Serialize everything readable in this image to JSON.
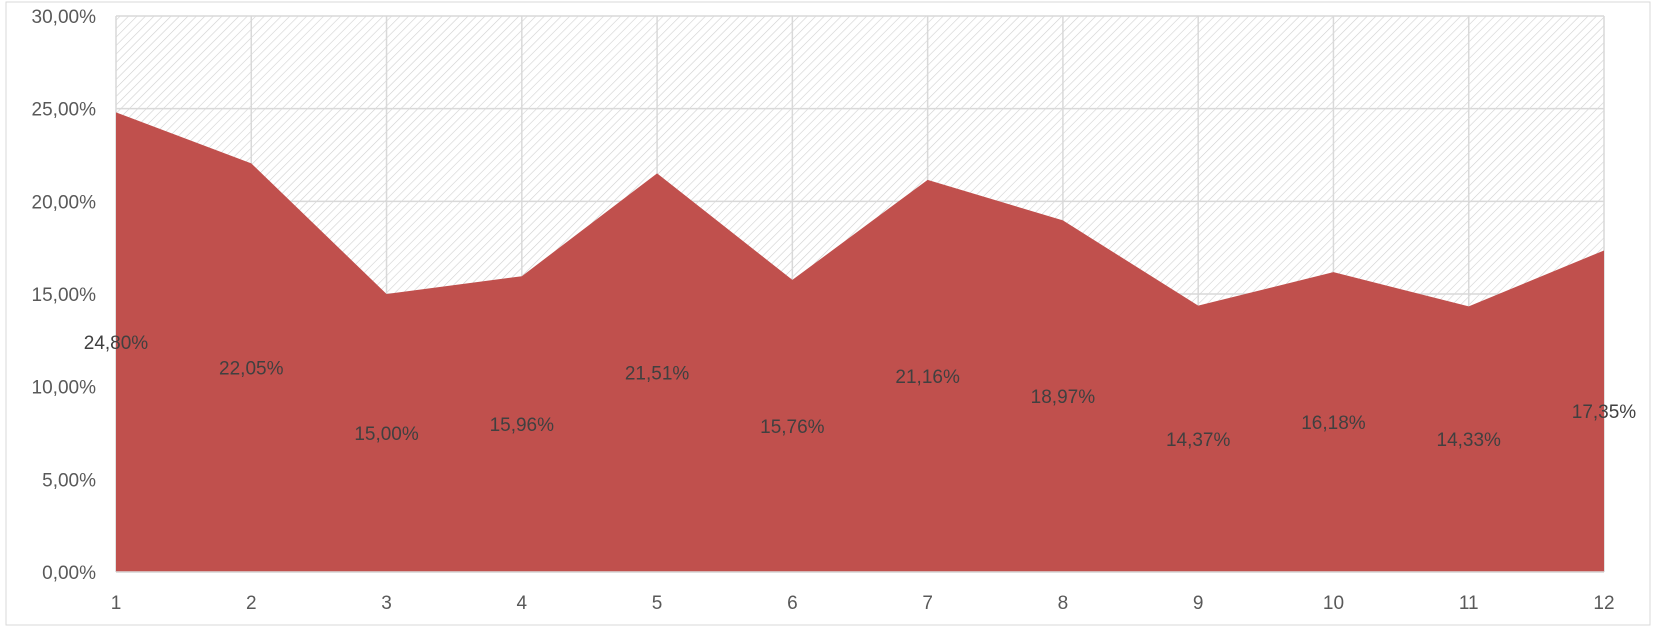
{
  "chart_data": {
    "type": "area",
    "title": "",
    "xlabel": "",
    "ylabel": "",
    "categories": [
      "1",
      "2",
      "3",
      "4",
      "5",
      "6",
      "7",
      "8",
      "9",
      "10",
      "11",
      "12"
    ],
    "series": [
      {
        "values": [
          24.8,
          22.05,
          15.0,
          15.96,
          21.51,
          15.76,
          21.16,
          18.97,
          14.37,
          16.18,
          14.33,
          17.35
        ],
        "data_labels": [
          "24,80%",
          "22,05%",
          "15,00%",
          "15,96%",
          "21,51%",
          "15,76%",
          "21,16%",
          "18,97%",
          "14,37%",
          "16,18%",
          "14,33%",
          "17,35%"
        ],
        "color": "#c0504d"
      }
    ],
    "ylim": [
      0,
      30
    ],
    "yticks": [
      0,
      5,
      10,
      15,
      20,
      25,
      30
    ],
    "ytick_labels": [
      "0,00%",
      "5,00%",
      "10,00%",
      "15,00%",
      "20,00%",
      "25,00%",
      "30,00%"
    ],
    "grid": true,
    "legend": "none",
    "background_fill": "diagonal-hatch",
    "colors": {
      "area": "#c0504d",
      "grid": "#d9d9d9",
      "hatch": "#d0d0d0",
      "text": "#595959"
    }
  }
}
